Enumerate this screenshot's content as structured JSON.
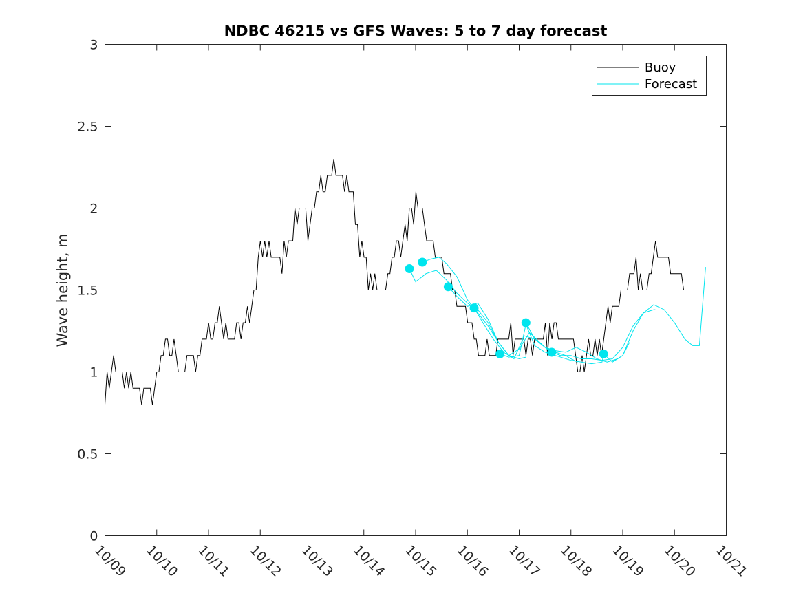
{
  "chart_data": {
    "type": "line",
    "title": "NDBC 46215 vs GFS Waves: 5 to 7 day forecast",
    "xlabel": "",
    "ylabel": "Wave height, m",
    "x_unit": "days since 10/09 00:00",
    "xlim": [
      0,
      12
    ],
    "ylim": [
      0,
      3
    ],
    "x_ticks": [
      0,
      1,
      2,
      3,
      4,
      5,
      6,
      7,
      8,
      9,
      10,
      11,
      12
    ],
    "x_tick_labels": [
      "10/09",
      "10/10",
      "10/11",
      "10/12",
      "10/13",
      "10/14",
      "10/15",
      "10/16",
      "10/17",
      "10/18",
      "10/19",
      "10/20",
      "10/21"
    ],
    "y_ticks": [
      0,
      0.5,
      1,
      1.5,
      2,
      2.5,
      3
    ],
    "y_tick_labels": [
      "0",
      "0.5",
      "1",
      "1.5",
      "2",
      "2.5",
      "3"
    ],
    "grid": false,
    "legend": {
      "position": "top-right",
      "entries": [
        {
          "label": "Buoy",
          "color": "#000000"
        },
        {
          "label": "Forecast",
          "color": "#00e5ee"
        }
      ]
    },
    "series": [
      {
        "name": "Buoy",
        "color": "#000000",
        "anchors": [
          [
            0.0,
            0.9
          ],
          [
            0.1,
            1.0
          ],
          [
            0.25,
            1.05
          ],
          [
            0.35,
            0.95
          ],
          [
            0.5,
            0.9
          ],
          [
            0.7,
            0.92
          ],
          [
            0.85,
            0.85
          ],
          [
            1.0,
            0.95
          ],
          [
            1.1,
            1.1
          ],
          [
            1.25,
            1.12
          ],
          [
            1.5,
            1.05
          ],
          [
            1.8,
            1.1
          ],
          [
            2.0,
            1.25
          ],
          [
            2.2,
            1.3
          ],
          [
            2.5,
            1.25
          ],
          [
            2.8,
            1.3
          ],
          [
            3.0,
            1.7
          ],
          [
            3.2,
            1.75
          ],
          [
            3.4,
            1.65
          ],
          [
            3.6,
            1.85
          ],
          [
            3.8,
            2.05
          ],
          [
            3.95,
            1.85
          ],
          [
            4.1,
            2.05
          ],
          [
            4.3,
            2.25
          ],
          [
            4.4,
            2.3
          ],
          [
            4.55,
            2.15
          ],
          [
            4.7,
            2.15
          ],
          [
            4.85,
            1.95
          ],
          [
            5.0,
            1.65
          ],
          [
            5.2,
            1.5
          ],
          [
            5.35,
            1.5
          ],
          [
            5.5,
            1.65
          ],
          [
            5.7,
            1.8
          ],
          [
            5.9,
            1.95
          ],
          [
            6.0,
            2.0
          ],
          [
            6.2,
            1.85
          ],
          [
            6.4,
            1.75
          ],
          [
            6.6,
            1.6
          ],
          [
            6.8,
            1.45
          ],
          [
            7.0,
            1.3
          ],
          [
            7.2,
            1.15
          ],
          [
            7.35,
            1.1
          ],
          [
            7.5,
            1.15
          ],
          [
            7.7,
            1.2
          ],
          [
            7.9,
            1.22
          ],
          [
            8.1,
            1.2
          ],
          [
            8.3,
            1.15
          ],
          [
            8.5,
            1.2
          ],
          [
            8.7,
            1.25
          ],
          [
            8.9,
            1.3
          ],
          [
            9.0,
            1.2
          ],
          [
            9.2,
            1.05
          ],
          [
            9.4,
            1.1
          ],
          [
            9.6,
            1.2
          ],
          [
            9.8,
            1.35
          ],
          [
            10.0,
            1.5
          ],
          [
            10.2,
            1.6
          ],
          [
            10.4,
            1.55
          ],
          [
            10.6,
            1.7
          ],
          [
            10.8,
            1.65
          ],
          [
            11.0,
            1.6
          ],
          [
            11.15,
            1.55
          ],
          [
            11.3,
            1.4
          ]
        ],
        "noise_amplitude": 0.08,
        "step": 0.0417
      },
      {
        "name": "Forecast run 1",
        "color": "#00e5ee",
        "marker": [
          5.88,
          1.63
        ],
        "points": [
          [
            5.88,
            1.63
          ],
          [
            6.0,
            1.55
          ],
          [
            6.2,
            1.6
          ],
          [
            6.4,
            1.62
          ],
          [
            6.6,
            1.56
          ],
          [
            6.8,
            1.48
          ],
          [
            7.0,
            1.42
          ],
          [
            7.2,
            1.38
          ],
          [
            7.4,
            1.3
          ],
          [
            7.6,
            1.18
          ],
          [
            7.8,
            1.1
          ],
          [
            7.88,
            1.09
          ]
        ]
      },
      {
        "name": "Forecast run 2",
        "color": "#00e5ee",
        "marker": [
          6.13,
          1.67
        ],
        "points": [
          [
            6.13,
            1.67
          ],
          [
            6.3,
            1.69
          ],
          [
            6.45,
            1.7
          ],
          [
            6.6,
            1.66
          ],
          [
            6.8,
            1.58
          ],
          [
            7.0,
            1.44
          ],
          [
            7.2,
            1.36
          ],
          [
            7.4,
            1.28
          ],
          [
            7.6,
            1.18
          ],
          [
            7.8,
            1.1
          ],
          [
            8.0,
            1.08
          ],
          [
            8.13,
            1.09
          ]
        ]
      },
      {
        "name": "Forecast run 3",
        "color": "#00e5ee",
        "marker": [
          6.63,
          1.52
        ],
        "points": [
          [
            6.63,
            1.52
          ],
          [
            6.8,
            1.46
          ],
          [
            7.0,
            1.4
          ],
          [
            7.2,
            1.42
          ],
          [
            7.4,
            1.32
          ],
          [
            7.6,
            1.18
          ],
          [
            7.8,
            1.1
          ],
          [
            8.0,
            1.14
          ],
          [
            8.2,
            1.24
          ],
          [
            8.4,
            1.18
          ],
          [
            8.6,
            1.12
          ],
          [
            8.63,
            1.12
          ]
        ]
      },
      {
        "name": "Forecast run 4",
        "color": "#00e5ee",
        "marker": [
          7.13,
          1.39
        ],
        "points": [
          [
            7.13,
            1.39
          ],
          [
            7.3,
            1.3
          ],
          [
            7.5,
            1.2
          ],
          [
            7.7,
            1.12
          ],
          [
            7.9,
            1.08
          ],
          [
            8.1,
            1.22
          ],
          [
            8.3,
            1.2
          ],
          [
            8.5,
            1.15
          ],
          [
            8.7,
            1.12
          ],
          [
            8.9,
            1.1
          ],
          [
            9.0,
            1.08
          ],
          [
            9.13,
            1.06
          ]
        ]
      },
      {
        "name": "Forecast run 5",
        "color": "#00e5ee",
        "marker": [
          7.63,
          1.11
        ],
        "points": [
          [
            7.63,
            1.11
          ],
          [
            7.8,
            1.09
          ],
          [
            8.0,
            1.1
          ],
          [
            8.13,
            1.29
          ],
          [
            8.3,
            1.16
          ],
          [
            8.5,
            1.12
          ],
          [
            8.7,
            1.1
          ],
          [
            9.0,
            1.07
          ],
          [
            9.2,
            1.06
          ],
          [
            9.4,
            1.05
          ],
          [
            9.6,
            1.06
          ],
          [
            9.63,
            1.11
          ]
        ]
      },
      {
        "name": "Forecast run 6",
        "color": "#00e5ee",
        "marker": [
          8.13,
          1.3
        ],
        "points": [
          [
            8.13,
            1.3
          ],
          [
            8.3,
            1.2
          ],
          [
            8.5,
            1.15
          ],
          [
            8.7,
            1.13
          ],
          [
            8.9,
            1.12
          ],
          [
            9.1,
            1.15
          ],
          [
            9.3,
            1.12
          ],
          [
            9.5,
            1.08
          ],
          [
            9.7,
            1.06
          ],
          [
            9.9,
            1.08
          ],
          [
            10.0,
            1.1
          ],
          [
            10.13,
            1.18
          ]
        ]
      },
      {
        "name": "Forecast run 7",
        "color": "#00e5ee",
        "marker": [
          8.63,
          1.12
        ],
        "points": [
          [
            8.63,
            1.12
          ],
          [
            8.8,
            1.1
          ],
          [
            9.0,
            1.1
          ],
          [
            9.2,
            1.08
          ],
          [
            9.4,
            1.08
          ],
          [
            9.6,
            1.07
          ],
          [
            9.8,
            1.08
          ],
          [
            10.0,
            1.15
          ],
          [
            10.2,
            1.28
          ],
          [
            10.4,
            1.36
          ],
          [
            10.6,
            1.38
          ],
          [
            10.63,
            1.38
          ]
        ]
      },
      {
        "name": "Forecast run 8",
        "color": "#00e5ee",
        "marker": [
          9.63,
          1.11
        ],
        "points": [
          [
            9.63,
            1.11
          ],
          [
            9.8,
            1.06
          ],
          [
            10.0,
            1.1
          ],
          [
            10.2,
            1.25
          ],
          [
            10.4,
            1.36
          ],
          [
            10.6,
            1.41
          ],
          [
            10.8,
            1.38
          ],
          [
            11.0,
            1.3
          ],
          [
            11.2,
            1.2
          ],
          [
            11.35,
            1.16
          ],
          [
            11.48,
            1.16
          ],
          [
            11.6,
            1.64
          ]
        ]
      }
    ]
  }
}
